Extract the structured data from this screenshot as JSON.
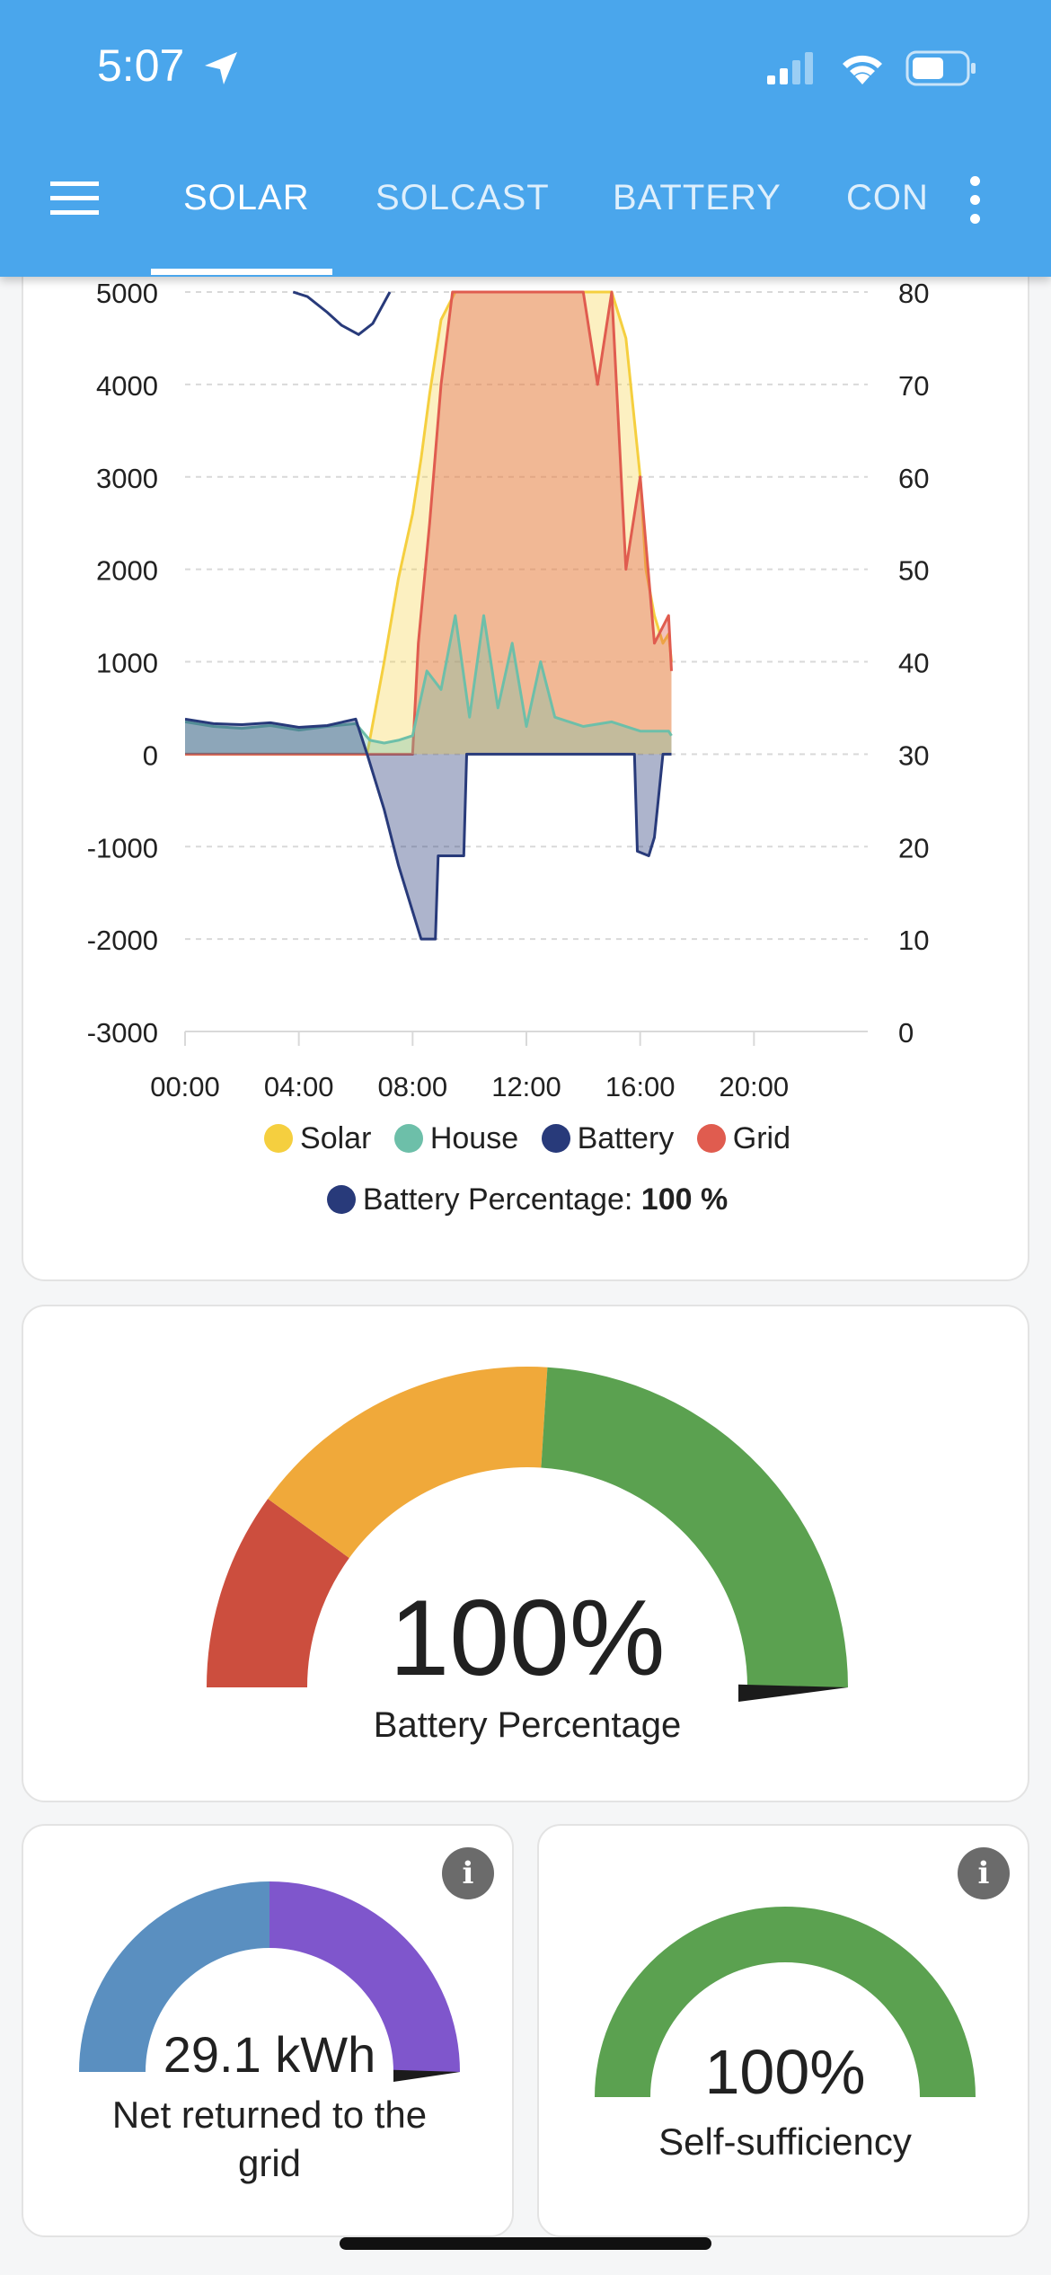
{
  "status_bar": {
    "time": "5:07"
  },
  "tabs": [
    {
      "label": "SOLAR",
      "active": true
    },
    {
      "label": "SOLCAST",
      "active": false
    },
    {
      "label": "BATTERY",
      "active": false
    },
    {
      "label": "CON",
      "active": false
    }
  ],
  "icons": {
    "menu": "menu-icon",
    "overflow": "more-vert-icon",
    "info": "info-icon",
    "location": "location-arrow-icon",
    "signal": "cellular-signal-icon",
    "wifi": "wifi-icon",
    "battery": "battery-icon"
  },
  "chart_data": {
    "type": "area",
    "left_axis_ticks": [
      "5000",
      "4000",
      "3000",
      "2000",
      "1000",
      "0",
      "-1000",
      "-2000",
      "-3000"
    ],
    "right_axis_ticks": [
      "80",
      "70",
      "60",
      "50",
      "40",
      "30",
      "20",
      "10",
      "0"
    ],
    "x_ticks": [
      "00:00",
      "04:00",
      "08:00",
      "12:00",
      "16:00",
      "20:00"
    ],
    "ylim_left": [
      -3000,
      5000
    ],
    "ylim_right": [
      0,
      80
    ],
    "xlim_hours": [
      0,
      24
    ],
    "grid": true,
    "series": [
      {
        "name": "Solar",
        "color": "#f5cf3f",
        "x": [
          0,
          6.4,
          7,
          7.5,
          8,
          8.3,
          8.6,
          9,
          9.5,
          10,
          11,
          12,
          12.5,
          13,
          14,
          15,
          15.5,
          16,
          16.2,
          16.5,
          16.8,
          17,
          17.1
        ],
        "y": [
          0,
          0,
          1000,
          1900,
          2600,
          3200,
          3900,
          4700,
          5000,
          5000,
          5000,
          5000,
          5000,
          5000,
          5000,
          5000,
          4500,
          3000,
          2000,
          1500,
          1200,
          1300,
          1000
        ]
      },
      {
        "name": "House",
        "color": "#6dbfa9",
        "x": [
          0,
          1,
          2,
          3,
          4,
          5,
          6,
          6.5,
          7,
          7.5,
          8,
          8.5,
          9,
          9.5,
          10,
          10.5,
          11,
          11.5,
          12,
          12.5,
          13,
          14,
          15,
          16,
          17,
          17.1
        ],
        "y": [
          350,
          300,
          280,
          310,
          260,
          300,
          330,
          150,
          120,
          150,
          200,
          900,
          700,
          1500,
          400,
          1500,
          500,
          1200,
          300,
          1000,
          400,
          300,
          350,
          250,
          250,
          200
        ]
      },
      {
        "name": "Battery",
        "color": "#283a7a",
        "x": [
          0,
          1,
          2,
          3,
          4,
          5,
          6,
          6.4,
          7,
          7.5,
          8,
          8.3,
          8.8,
          8.9,
          9.8,
          9.9,
          10,
          12,
          14,
          15.8,
          15.9,
          16.3,
          16.5,
          16.6,
          16.8,
          17.1
        ],
        "y": [
          380,
          330,
          320,
          340,
          290,
          310,
          380,
          0,
          -600,
          -1200,
          -1700,
          -2000,
          -2000,
          -1100,
          -1100,
          0,
          0,
          0,
          0,
          0,
          -1050,
          -1100,
          -900,
          -600,
          0,
          0
        ]
      },
      {
        "name": "Grid",
        "color": "#e05c4f",
        "x": [
          0,
          6,
          7,
          8,
          8.2,
          8.6,
          9,
          9.4,
          9.8,
          10,
          10.5,
          11,
          11.5,
          12,
          12.5,
          13,
          13.5,
          14,
          14.5,
          15,
          15.5,
          16,
          16.5,
          17,
          17.1
        ],
        "y": [
          0,
          0,
          0,
          0,
          1200,
          2500,
          4000,
          5000,
          5000,
          5000,
          5000,
          5000,
          5000,
          5000,
          5000,
          5000,
          5000,
          5000,
          4000,
          5000,
          2000,
          3000,
          1200,
          1500,
          900
        ]
      }
    ],
    "battery_percentage_line": {
      "x": [
        3.8,
        4.3,
        5.0,
        5.5,
        6.1,
        6.6,
        7.2
      ],
      "y": [
        80,
        79.5,
        77.8,
        76.4,
        75.4,
        76.6,
        80
      ]
    },
    "legend": [
      "Solar",
      "House",
      "Battery",
      "Grid"
    ],
    "legend_extra": {
      "label": "Battery Percentage:",
      "value": "100 %",
      "color": "#283a7a"
    }
  },
  "battery_gauge": {
    "value": "100%",
    "name": "Battery Percentage",
    "level_fraction": 1.0,
    "segments": [
      {
        "from": 0,
        "to": 0.2,
        "color": "#cc4e3e"
      },
      {
        "from": 0.2,
        "to": 0.52,
        "color": "#f0a93a"
      },
      {
        "from": 0.52,
        "to": 1.0,
        "color": "#5ba150"
      }
    ]
  },
  "net_gauge": {
    "value": "29.1 kWh",
    "name_line1": "Net returned to the",
    "name_line2": "grid",
    "level_fraction": 1.0,
    "segments": [
      {
        "from": 0,
        "to": 0.5,
        "color": "#5a8fc0"
      },
      {
        "from": 0.5,
        "to": 1.0,
        "color": "#7f56cc"
      }
    ]
  },
  "self_gauge": {
    "value": "100%",
    "name": "Self-sufficiency",
    "level_fraction": 1.0,
    "segments": [
      {
        "from": 0,
        "to": 1.0,
        "color": "#5ba150"
      }
    ]
  }
}
